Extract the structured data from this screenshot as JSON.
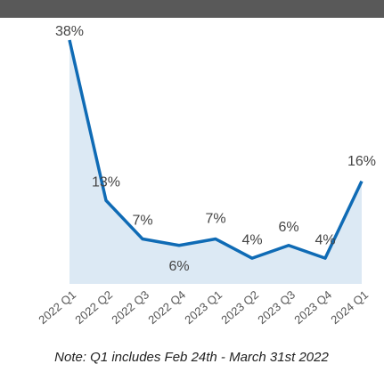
{
  "chart_data": {
    "type": "line",
    "categories": [
      "2022 Q1",
      "2022 Q2",
      "2022 Q3",
      "2022 Q4",
      "2023 Q1",
      "2023 Q2",
      "2023 Q3",
      "2023 Q4",
      "2024 Q1"
    ],
    "values": [
      38,
      13,
      7,
      6,
      7,
      4,
      6,
      4,
      16
    ],
    "value_labels": [
      "38%",
      "13%",
      "7%",
      "6%",
      "7%",
      "4%",
      "6%",
      "4%",
      "16%"
    ],
    "color": "#0f6bb5",
    "area_color": "#dce9f4",
    "ylim": [
      0,
      38
    ],
    "note": "Note: Q1 includes Feb 24th - March 31st 2022"
  }
}
